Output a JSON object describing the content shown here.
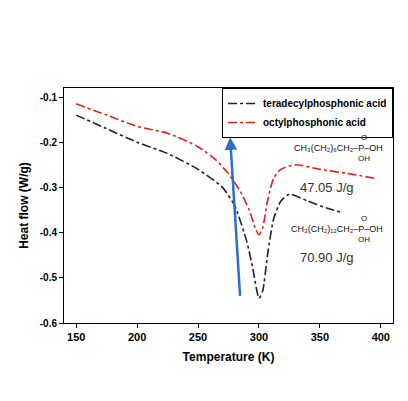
{
  "chart_data": {
    "type": "line",
    "xlabel": "Temperature (K)",
    "ylabel": "Heat flow (W/g)",
    "xlim": [
      140,
      410
    ],
    "xticks": [
      150,
      200,
      250,
      300,
      350,
      400
    ],
    "ylim": [
      -0.6,
      -0.08
    ],
    "yticks": [
      -0.6,
      -0.5,
      -0.4,
      -0.3,
      -0.2,
      -0.1
    ],
    "grid": false,
    "legend": "top-right",
    "series": [
      {
        "name": "teradecylphosphonic acid",
        "color": "#222222",
        "line_style": "dashdot",
        "x": [
          150,
          175,
          200,
          225,
          250,
          270,
          280,
          290,
          295,
          300,
          303,
          307,
          312,
          318,
          325,
          340,
          355,
          367
        ],
        "values": [
          -0.14,
          -0.17,
          -0.2,
          -0.225,
          -0.26,
          -0.3,
          -0.34,
          -0.42,
          -0.48,
          -0.545,
          -0.53,
          -0.45,
          -0.37,
          -0.33,
          -0.315,
          -0.33,
          -0.345,
          -0.355
        ]
      },
      {
        "name": "octylphosphonic acid",
        "color": "#e8201a",
        "line_style": "dashdot",
        "x": [
          150,
          175,
          200,
          225,
          250,
          265,
          275,
          285,
          292,
          297,
          300,
          303,
          307,
          312,
          318,
          330,
          350,
          375,
          395
        ],
        "values": [
          -0.115,
          -0.14,
          -0.165,
          -0.18,
          -0.21,
          -0.24,
          -0.27,
          -0.31,
          -0.35,
          -0.39,
          -0.405,
          -0.39,
          -0.33,
          -0.28,
          -0.26,
          -0.25,
          -0.26,
          -0.27,
          -0.28
        ]
      }
    ],
    "annotations": [
      {
        "top": "O",
        "formula": "CH₃(CH₂)₆CH₂–P–OH",
        "bottom": "OH",
        "enthalpy": "47.05 J/g"
      },
      {
        "top": "O",
        "formula": "CH₃(CH₂)₁₂CH₂–P–OH",
        "bottom": "OH",
        "enthalpy": "70.90 J/g"
      }
    ]
  }
}
